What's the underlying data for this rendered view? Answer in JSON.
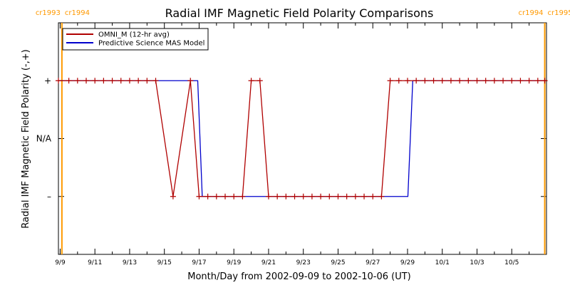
{
  "chart_data": {
    "type": "line",
    "title": "Radial IMF Magnetic Field Polarity Comparisons",
    "xlabel": "Month/Day from 2002-09-09 to 2002-10-06 (UT)",
    "ylabel": "Radial IMF Magnetic Field Polarity (-,+)",
    "x_start_date": "2002-09-09",
    "xlim": [
      -0.1,
      28.0
    ],
    "ylim": [
      -2.0,
      2.0
    ],
    "x_ticks": [
      {
        "day": 0,
        "label": "9/9"
      },
      {
        "day": 2,
        "label": "9/11"
      },
      {
        "day": 4,
        "label": "9/13"
      },
      {
        "day": 6,
        "label": "9/15"
      },
      {
        "day": 8,
        "label": "9/17"
      },
      {
        "day": 10,
        "label": "9/19"
      },
      {
        "day": 12,
        "label": "9/21"
      },
      {
        "day": 14,
        "label": "9/23"
      },
      {
        "day": 16,
        "label": "9/25"
      },
      {
        "day": 18,
        "label": "9/27"
      },
      {
        "day": 20,
        "label": "9/29"
      },
      {
        "day": 22,
        "label": "10/1"
      },
      {
        "day": 24,
        "label": "10/3"
      },
      {
        "day": 26,
        "label": "10/5"
      }
    ],
    "y_ticks": [
      {
        "value": 1,
        "label": "+"
      },
      {
        "value": 0,
        "label": "N/A"
      },
      {
        "value": -1,
        "label": "–"
      }
    ],
    "rotations": [
      {
        "day": 0.1,
        "left": "cr1993",
        "right": "cr1994"
      },
      {
        "day": 27.9,
        "left": "cr1994",
        "right": "cr1995"
      }
    ],
    "legend": "top-left",
    "series": [
      {
        "name": "OMNI_M (12-hr avg)",
        "color": "#b00000",
        "markers": true,
        "points": [
          [
            -0.1,
            1
          ],
          [
            0.5,
            1
          ],
          [
            1.0,
            1
          ],
          [
            1.5,
            1
          ],
          [
            2.0,
            1
          ],
          [
            2.5,
            1
          ],
          [
            3.0,
            1
          ],
          [
            3.5,
            1
          ],
          [
            4.0,
            1
          ],
          [
            4.5,
            1
          ],
          [
            5.0,
            1
          ],
          [
            5.5,
            1
          ],
          [
            6.5,
            -1
          ],
          [
            7.5,
            1
          ],
          [
            8.0,
            -1
          ],
          [
            8.5,
            -1
          ],
          [
            9.0,
            -1
          ],
          [
            9.5,
            -1
          ],
          [
            10.0,
            -1
          ],
          [
            10.5,
            -1
          ],
          [
            11.0,
            1
          ],
          [
            11.5,
            1
          ],
          [
            12.0,
            -1
          ],
          [
            12.5,
            -1
          ],
          [
            13.0,
            -1
          ],
          [
            13.5,
            -1
          ],
          [
            14.0,
            -1
          ],
          [
            14.5,
            -1
          ],
          [
            15.0,
            -1
          ],
          [
            15.5,
            -1
          ],
          [
            16.0,
            -1
          ],
          [
            16.5,
            -1
          ],
          [
            17.0,
            -1
          ],
          [
            17.5,
            -1
          ],
          [
            18.0,
            -1
          ],
          [
            18.5,
            -1
          ],
          [
            19.0,
            1
          ],
          [
            19.5,
            1
          ],
          [
            20.0,
            1
          ],
          [
            20.5,
            1
          ],
          [
            21.0,
            1
          ],
          [
            21.5,
            1
          ],
          [
            22.0,
            1
          ],
          [
            22.5,
            1
          ],
          [
            23.0,
            1
          ],
          [
            23.5,
            1
          ],
          [
            24.0,
            1
          ],
          [
            24.5,
            1
          ],
          [
            25.0,
            1
          ],
          [
            25.5,
            1
          ],
          [
            26.0,
            1
          ],
          [
            26.5,
            1
          ],
          [
            27.0,
            1
          ],
          [
            27.5,
            1
          ],
          [
            27.9,
            1
          ]
        ]
      },
      {
        "name": "Predictive Science MAS Model",
        "color": "#0000cc",
        "markers": false,
        "points": [
          [
            -0.1,
            1
          ],
          [
            7.92,
            1
          ],
          [
            8.18,
            -1
          ],
          [
            20.02,
            -1
          ],
          [
            20.3,
            1
          ],
          [
            27.9,
            1
          ]
        ]
      }
    ]
  }
}
